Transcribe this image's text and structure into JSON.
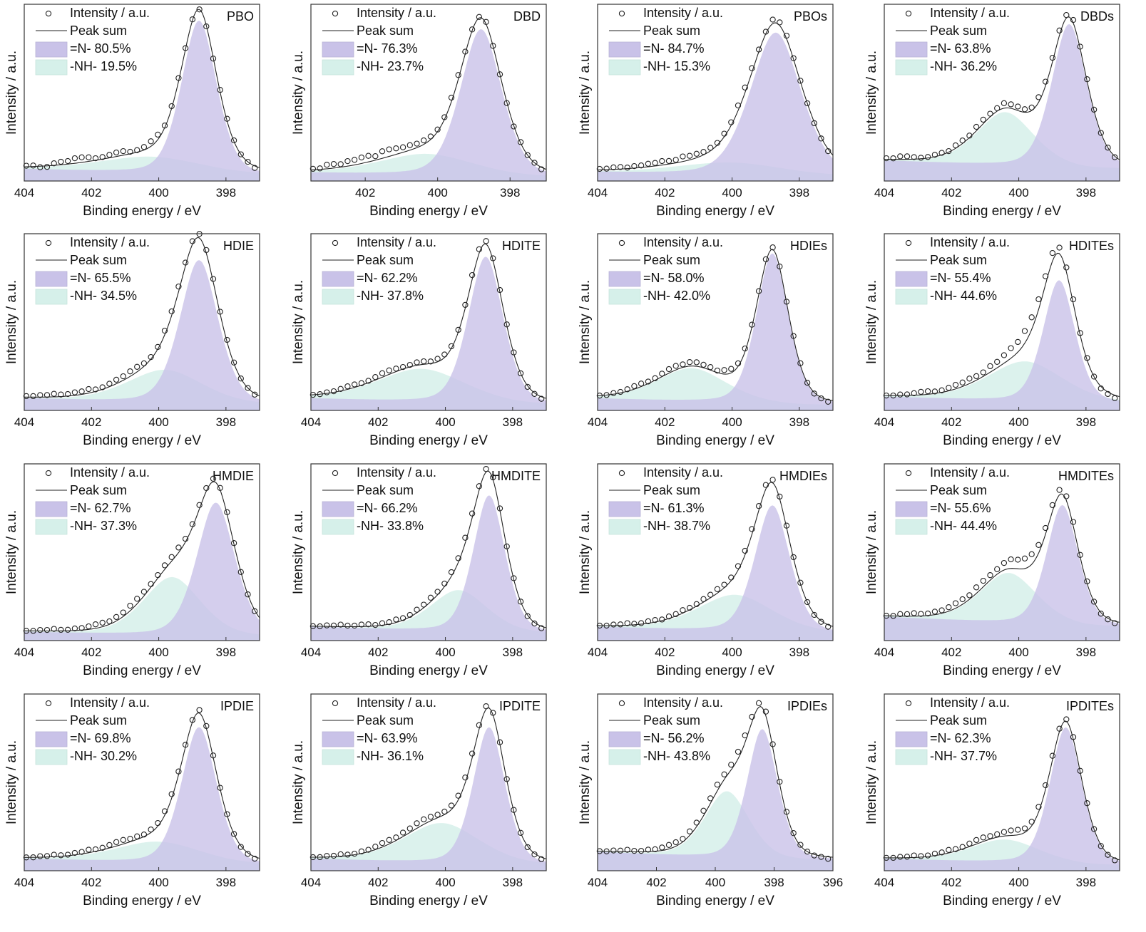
{
  "common": {
    "legend_intensity": "Intensity / a.u.",
    "legend_sum": "Peak sum",
    "legend_n_prefix": "=N-",
    "legend_nh_prefix": "-NH-",
    "xlabel": "Binding energy / eV",
    "ylabel": "Intensity / a.u."
  },
  "colors": {
    "n_fill": "#c9c2e8",
    "nh_fill": "#d6f0ea",
    "line": "#222222",
    "frame": "#333333"
  },
  "chart_data": [
    {
      "type": "area",
      "name": "PBO",
      "n_pct": "80.5%",
      "nh_pct": "19.5%",
      "xlim": [
        404,
        397
      ],
      "xticks": [
        404,
        402,
        400,
        398
      ],
      "peakN": {
        "c": 398.8,
        "w": 0.55,
        "h": 0.92
      },
      "peakNH": {
        "c": 400.2,
        "w": 1.7,
        "h": 0.1
      },
      "base": 0.03,
      "tail": 0.04,
      "pt_noise": [
        0.01,
        -0.01,
        0.02,
        0.03,
        0.05,
        0.04,
        0.02,
        0.03,
        0.04,
        0.02,
        0.03,
        0.05,
        0.02,
        0.03,
        0.01,
        0.0,
        -0.01,
        0.02,
        0.01,
        0.0,
        -0.02
      ]
    },
    {
      "type": "area",
      "name": "DBD",
      "n_pct": "76.3%",
      "nh_pct": "23.7%",
      "xlim": [
        403.5,
        397
      ],
      "xticks": [
        402,
        400,
        398
      ],
      "peakN": {
        "c": 398.8,
        "w": 0.6,
        "h": 0.88
      },
      "peakNH": {
        "c": 400.3,
        "w": 1.4,
        "h": 0.13
      },
      "base": 0.02,
      "tail": 0.03,
      "pt_noise": [
        0.01,
        0.04,
        0.03,
        0.05,
        0.06,
        0.04,
        0.07,
        0.06,
        0.05,
        0.04,
        0.03,
        0.02,
        0.04,
        0.02,
        0.01,
        0.02,
        0.0,
        -0.01,
        0.01,
        0.0,
        -0.02
      ]
    },
    {
      "type": "area",
      "name": "PBOs",
      "n_pct": "84.7%",
      "nh_pct": "15.3%",
      "xlim": [
        404,
        397
      ],
      "xticks": [
        404,
        402,
        400,
        398
      ],
      "peakN": {
        "c": 398.7,
        "w": 0.8,
        "h": 0.86
      },
      "peakNH": {
        "c": 400.0,
        "w": 1.8,
        "h": 0.08
      },
      "base": 0.02,
      "tail": 0.03,
      "pt_noise": [
        0.01,
        0.02,
        0.01,
        0.02,
        0.03,
        0.04,
        0.03,
        0.05,
        0.04,
        0.03,
        0.02,
        0.03,
        0.05,
        0.04,
        0.02,
        0.04,
        0.03,
        0.01,
        0.0,
        -0.01,
        -0.02
      ]
    },
    {
      "type": "area",
      "name": "DBDs",
      "n_pct": "63.8%",
      "nh_pct": "36.2%",
      "xlim": [
        404,
        397
      ],
      "xticks": [
        404,
        402,
        400,
        398
      ],
      "peakN": {
        "c": 398.5,
        "w": 0.55,
        "h": 0.86
      },
      "peakNH": {
        "c": 400.4,
        "w": 0.9,
        "h": 0.32
      },
      "base": 0.07,
      "tail": 0.05,
      "pt_noise": [
        0.01,
        0.03,
        0.02,
        0.01,
        0.02,
        0.01,
        0.03,
        0.02,
        0.04,
        0.03,
        0.05,
        0.04,
        0.03,
        0.05,
        0.04,
        0.05,
        0.03,
        0.02,
        0.01,
        0.0,
        -0.01
      ]
    },
    {
      "type": "area",
      "name": "HDIE",
      "n_pct": "65.5%",
      "nh_pct": "34.5%",
      "xlim": [
        404,
        397
      ],
      "xticks": [
        404,
        402,
        400,
        398
      ],
      "peakN": {
        "c": 398.8,
        "w": 0.6,
        "h": 0.86
      },
      "peakNH": {
        "c": 399.8,
        "w": 1.2,
        "h": 0.2
      },
      "base": 0.03,
      "tail": 0.04,
      "pt_noise": [
        0.01,
        0.02,
        0.03,
        0.02,
        0.03,
        0.04,
        0.02,
        0.03,
        0.04,
        0.05,
        0.03,
        0.02,
        0.04,
        0.05,
        0.03,
        0.04,
        0.03,
        0.02,
        0.01,
        0.0,
        -0.01
      ]
    },
    {
      "type": "area",
      "name": "HDITE",
      "n_pct": "62.2%",
      "nh_pct": "37.8%",
      "xlim": [
        404,
        397
      ],
      "xticks": [
        404,
        402,
        400,
        398
      ],
      "peakN": {
        "c": 398.8,
        "w": 0.55,
        "h": 0.88
      },
      "peakNH": {
        "c": 400.7,
        "w": 1.4,
        "h": 0.2
      },
      "base": 0.03,
      "tail": 0.04,
      "pt_noise": [
        0.0,
        0.01,
        0.02,
        0.03,
        0.02,
        0.03,
        0.04,
        0.03,
        0.02,
        0.03,
        0.02,
        0.03,
        0.02,
        0.03,
        0.04,
        0.03,
        0.02,
        0.01,
        0.0,
        -0.01,
        -0.02
      ]
    },
    {
      "type": "area",
      "name": "HDIEs",
      "n_pct": "58.0%",
      "nh_pct": "42.0%",
      "xlim": [
        404,
        397
      ],
      "xticks": [
        404,
        402,
        400,
        398
      ],
      "peakN": {
        "c": 398.8,
        "w": 0.5,
        "h": 0.9
      },
      "peakNH": {
        "c": 401.2,
        "w": 1.1,
        "h": 0.2
      },
      "base": 0.03,
      "tail": 0.04,
      "pt_noise": [
        0.0,
        0.01,
        0.02,
        0.03,
        0.02,
        0.03,
        0.04,
        0.03,
        0.04,
        0.03,
        0.02,
        0.04,
        0.03,
        0.02,
        0.03,
        0.02,
        0.01,
        0.02,
        0.0,
        -0.01,
        -0.02
      ]
    },
    {
      "type": "area",
      "name": "HDITEs",
      "n_pct": "55.4%",
      "nh_pct": "44.6%",
      "xlim": [
        404,
        397
      ],
      "xticks": [
        404,
        402,
        400,
        398
      ],
      "peakN": {
        "c": 398.8,
        "w": 0.5,
        "h": 0.73
      },
      "peakNH": {
        "c": 399.8,
        "w": 1.2,
        "h": 0.24
      },
      "base": 0.04,
      "tail": 0.04,
      "pt_noise": [
        0.0,
        0.01,
        0.02,
        0.03,
        0.02,
        0.03,
        0.04,
        0.05,
        0.04,
        0.06,
        0.08,
        0.1,
        0.12,
        0.1,
        0.08,
        0.06,
        0.04,
        0.02,
        0.0,
        -0.02,
        -0.03
      ]
    },
    {
      "type": "area",
      "name": "HMDIE",
      "n_pct": "62.7%",
      "nh_pct": "37.3%",
      "xlim": [
        404,
        397
      ],
      "xticks": [
        404,
        402,
        400,
        398
      ],
      "peakN": {
        "c": 398.3,
        "w": 0.6,
        "h": 0.8
      },
      "peakNH": {
        "c": 399.6,
        "w": 0.9,
        "h": 0.35
      },
      "base": 0.02,
      "tail": 0.03,
      "pt_noise": [
        0.0,
        0.01,
        0.02,
        0.01,
        0.02,
        0.03,
        0.04,
        0.03,
        0.04,
        0.05,
        0.04,
        0.03,
        0.04,
        0.05,
        0.03,
        0.04,
        0.03,
        0.02,
        0.01,
        0.0,
        -0.01
      ]
    },
    {
      "type": "area",
      "name": "HMDITE",
      "n_pct": "66.2%",
      "nh_pct": "33.8%",
      "xlim": [
        404,
        397
      ],
      "xticks": [
        404,
        402,
        400,
        398
      ],
      "peakN": {
        "c": 398.7,
        "w": 0.5,
        "h": 0.82
      },
      "peakNH": {
        "c": 399.6,
        "w": 0.9,
        "h": 0.25
      },
      "base": 0.04,
      "tail": 0.04,
      "pt_noise": [
        0.0,
        0.01,
        0.02,
        0.01,
        0.02,
        0.01,
        0.02,
        0.03,
        0.02,
        0.03,
        0.04,
        0.03,
        0.04,
        0.05,
        0.04,
        0.03,
        0.02,
        0.01,
        0.0,
        -0.01,
        -0.02
      ]
    },
    {
      "type": "area",
      "name": "HMDIEs",
      "n_pct": "61.3%",
      "nh_pct": "38.7%",
      "xlim": [
        404,
        397
      ],
      "xticks": [
        404,
        402,
        400,
        398
      ],
      "peakN": {
        "c": 398.8,
        "w": 0.55,
        "h": 0.76
      },
      "peakNH": {
        "c": 399.9,
        "w": 1.2,
        "h": 0.22
      },
      "base": 0.04,
      "tail": 0.04,
      "pt_noise": [
        0.0,
        0.01,
        0.02,
        0.01,
        0.02,
        0.01,
        0.02,
        0.03,
        0.02,
        0.03,
        0.04,
        0.03,
        0.04,
        0.05,
        0.04,
        0.03,
        0.02,
        0.01,
        0.0,
        -0.01,
        -0.02
      ]
    },
    {
      "type": "area",
      "name": "HMDITEs",
      "n_pct": "55.6%",
      "nh_pct": "44.4%",
      "xlim": [
        404,
        397
      ],
      "xticks": [
        404,
        402,
        400,
        398
      ],
      "peakN": {
        "c": 398.7,
        "w": 0.5,
        "h": 0.72
      },
      "peakNH": {
        "c": 400.3,
        "w": 0.9,
        "h": 0.3
      },
      "base": 0.08,
      "tail": 0.06,
      "pt_noise": [
        0.0,
        0.02,
        0.03,
        0.02,
        0.03,
        0.04,
        0.05,
        0.04,
        0.06,
        0.05,
        0.07,
        0.09,
        0.1,
        0.08,
        0.06,
        0.05,
        0.04,
        0.02,
        0.0,
        -0.01,
        -0.02
      ]
    },
    {
      "type": "area",
      "name": "IPDIE",
      "n_pct": "69.8%",
      "nh_pct": "30.2%",
      "xlim": [
        404,
        397
      ],
      "xticks": [
        404,
        402,
        400,
        398
      ],
      "peakN": {
        "c": 398.8,
        "w": 0.55,
        "h": 0.82
      },
      "peakNH": {
        "c": 400.0,
        "w": 1.4,
        "h": 0.13
      },
      "base": 0.03,
      "tail": 0.04,
      "pt_noise": [
        0.0,
        0.01,
        0.02,
        0.01,
        0.02,
        0.03,
        0.02,
        0.03,
        0.04,
        0.03,
        0.02,
        0.03,
        0.04,
        0.03,
        0.02,
        0.03,
        0.02,
        0.01,
        0.0,
        -0.01,
        -0.02
      ]
    },
    {
      "type": "area",
      "name": "IPDITE",
      "n_pct": "63.9%",
      "nh_pct": "36.1%",
      "xlim": [
        404,
        397
      ],
      "xticks": [
        404,
        402,
        400,
        398
      ],
      "peakN": {
        "c": 398.7,
        "w": 0.5,
        "h": 0.82
      },
      "peakNH": {
        "c": 400.1,
        "w": 1.2,
        "h": 0.24
      },
      "base": 0.03,
      "tail": 0.04,
      "pt_noise": [
        0.0,
        0.01,
        0.02,
        0.01,
        0.02,
        0.03,
        0.04,
        0.03,
        0.04,
        0.05,
        0.04,
        0.03,
        0.04,
        0.05,
        0.04,
        0.03,
        0.02,
        0.01,
        0.0,
        -0.01,
        -0.02
      ]
    },
    {
      "type": "area",
      "name": "IPDIEs",
      "n_pct": "56.2%",
      "nh_pct": "43.8%",
      "xlim": [
        404,
        396
      ],
      "xticks": [
        404,
        402,
        400,
        398,
        396
      ],
      "peakN": {
        "c": 398.4,
        "w": 0.55,
        "h": 0.78
      },
      "peakNH": {
        "c": 399.6,
        "w": 0.8,
        "h": 0.4
      },
      "base": 0.06,
      "tail": 0.05,
      "pt_noise": [
        0.0,
        0.01,
        0.02,
        0.01,
        0.02,
        0.03,
        0.04,
        0.03,
        0.04,
        0.05,
        0.06,
        0.05,
        0.07,
        0.05,
        0.04,
        0.03,
        0.02,
        0.01,
        0.0,
        -0.01,
        -0.02
      ]
    },
    {
      "type": "area",
      "name": "IPDITEs",
      "n_pct": "62.3%",
      "nh_pct": "37.7%",
      "xlim": [
        404,
        397
      ],
      "xticks": [
        404,
        402,
        400,
        398
      ],
      "peakN": {
        "c": 398.6,
        "w": 0.5,
        "h": 0.82
      },
      "peakNH": {
        "c": 400.4,
        "w": 1.1,
        "h": 0.14
      },
      "base": 0.03,
      "tail": 0.04,
      "pt_noise": [
        0.0,
        0.01,
        0.02,
        0.01,
        0.02,
        0.03,
        0.02,
        0.03,
        0.04,
        0.03,
        0.04,
        0.05,
        0.04,
        0.05,
        0.04,
        0.03,
        0.02,
        0.01,
        0.0,
        -0.01,
        -0.02
      ]
    }
  ]
}
